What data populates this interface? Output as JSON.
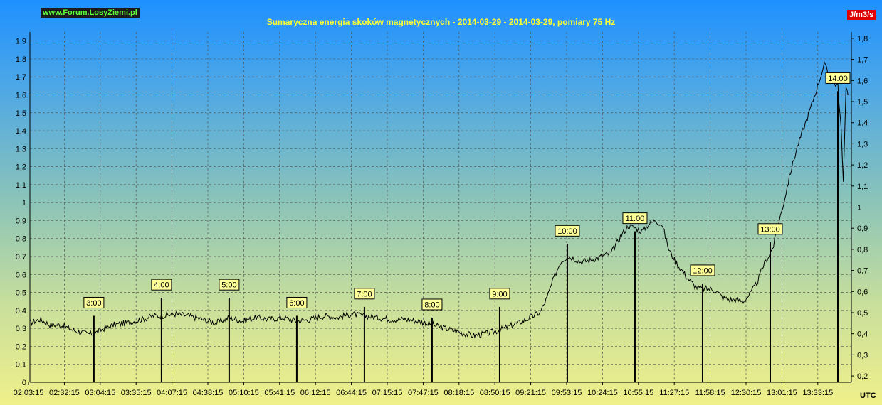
{
  "header": {
    "site_badge": "www.Forum.LosyZiemi.pl",
    "title": "Sumaryczna energia skoków magnetycznych - 2014-03-29 - 2014-03-29, pomiary 75 Hz",
    "unit": "J/m3/s",
    "time_zone": "UTC"
  },
  "colors": {
    "line": "#000000",
    "marker_fill": "#ffff99",
    "badge_text": "#5cff3a",
    "title_text": "#ffff33",
    "unit_bg": "#e00000"
  },
  "chart_data": {
    "type": "line",
    "title": "Sumaryczna energia skoków magnetycznych - 2014-03-29 - 2014-03-29, pomiary 75 Hz",
    "ylabel": "J/m3/s",
    "xlabel": "UTC",
    "grid": true,
    "left_axis": {
      "ylim": [
        0,
        1.95
      ],
      "ticks": [
        "0",
        "0,1",
        "0,2",
        "0,3",
        "0,4",
        "0,5",
        "0,6",
        "0,7",
        "0,8",
        "0,9",
        "1",
        "1,1",
        "1,2",
        "1,3",
        "1,4",
        "1,5",
        "1,6",
        "1,7",
        "1,8",
        "1,9"
      ]
    },
    "right_axis": {
      "ylim": [
        0.17,
        1.83
      ],
      "ticks": [
        "0,2",
        "0,3",
        "0,4",
        "0,5",
        "0,6",
        "0,7",
        "0,8",
        "0,9",
        "1",
        "1,1",
        "1,2",
        "1,3",
        "1,4",
        "1,5",
        "1,6",
        "1,7",
        "1,8"
      ]
    },
    "x_tick_labels": [
      "02:03:15",
      "02:32:15",
      "03:04:15",
      "03:35:15",
      "04:07:15",
      "04:38:15",
      "05:10:15",
      "05:41:15",
      "06:12:15",
      "06:44:15",
      "07:15:15",
      "07:47:15",
      "08:18:15",
      "08:50:15",
      "09:21:15",
      "09:53:15",
      "10:24:15",
      "10:55:15",
      "11:27:15",
      "11:58:15",
      "12:30:15",
      "13:01:15",
      "13:33:15"
    ],
    "xlim_hours": [
      2.054,
      14.2
    ],
    "hour_markers": [
      {
        "label": "3:00",
        "hour": 3,
        "value": 0.37
      },
      {
        "label": "4:00",
        "hour": 4,
        "value": 0.47
      },
      {
        "label": "5:00",
        "hour": 5,
        "value": 0.47
      },
      {
        "label": "6:00",
        "hour": 6,
        "value": 0.37
      },
      {
        "label": "7:00",
        "hour": 7,
        "value": 0.42
      },
      {
        "label": "8:00",
        "hour": 8,
        "value": 0.36
      },
      {
        "label": "9:00",
        "hour": 9,
        "value": 0.42
      },
      {
        "label": "10:00",
        "hour": 10,
        "value": 0.77
      },
      {
        "label": "11:00",
        "hour": 11,
        "value": 0.84
      },
      {
        "label": "12:00",
        "hour": 12,
        "value": 0.55
      },
      {
        "label": "13:00",
        "hour": 13,
        "value": 0.78
      },
      {
        "label": "14:00",
        "hour": 14,
        "value": 1.62
      }
    ],
    "series": [
      {
        "points": [
          [
            2.05,
            0.33
          ],
          [
            2.2,
            0.35
          ],
          [
            2.35,
            0.32
          ],
          [
            2.5,
            0.32
          ],
          [
            2.7,
            0.29
          ],
          [
            2.9,
            0.27
          ],
          [
            3.0,
            0.27
          ],
          [
            3.15,
            0.3
          ],
          [
            3.3,
            0.32
          ],
          [
            3.5,
            0.33
          ],
          [
            3.7,
            0.35
          ],
          [
            3.9,
            0.37
          ],
          [
            4.0,
            0.37
          ],
          [
            4.2,
            0.38
          ],
          [
            4.4,
            0.37
          ],
          [
            4.6,
            0.35
          ],
          [
            4.8,
            0.33
          ],
          [
            5.0,
            0.36
          ],
          [
            5.2,
            0.34
          ],
          [
            5.4,
            0.36
          ],
          [
            5.6,
            0.35
          ],
          [
            5.8,
            0.36
          ],
          [
            6.0,
            0.34
          ],
          [
            6.2,
            0.35
          ],
          [
            6.4,
            0.37
          ],
          [
            6.6,
            0.36
          ],
          [
            6.8,
            0.38
          ],
          [
            7.0,
            0.37
          ],
          [
            7.2,
            0.36
          ],
          [
            7.4,
            0.35
          ],
          [
            7.6,
            0.35
          ],
          [
            7.8,
            0.34
          ],
          [
            8.0,
            0.32
          ],
          [
            8.2,
            0.3
          ],
          [
            8.4,
            0.28
          ],
          [
            8.6,
            0.26
          ],
          [
            8.8,
            0.27
          ],
          [
            9.0,
            0.29
          ],
          [
            9.2,
            0.32
          ],
          [
            9.4,
            0.35
          ],
          [
            9.6,
            0.39
          ],
          [
            9.7,
            0.47
          ],
          [
            9.8,
            0.58
          ],
          [
            9.9,
            0.67
          ],
          [
            10.0,
            0.7
          ],
          [
            10.1,
            0.69
          ],
          [
            10.2,
            0.67
          ],
          [
            10.35,
            0.68
          ],
          [
            10.5,
            0.7
          ],
          [
            10.65,
            0.72
          ],
          [
            10.8,
            0.82
          ],
          [
            10.9,
            0.87
          ],
          [
            11.0,
            0.86
          ],
          [
            11.1,
            0.84
          ],
          [
            11.2,
            0.88
          ],
          [
            11.3,
            0.9
          ],
          [
            11.4,
            0.88
          ],
          [
            11.5,
            0.74
          ],
          [
            11.6,
            0.67
          ],
          [
            11.7,
            0.62
          ],
          [
            11.8,
            0.57
          ],
          [
            11.9,
            0.53
          ],
          [
            12.0,
            0.52
          ],
          [
            12.1,
            0.52
          ],
          [
            12.2,
            0.51
          ],
          [
            12.3,
            0.47
          ],
          [
            12.4,
            0.46
          ],
          [
            12.5,
            0.46
          ],
          [
            12.6,
            0.45
          ],
          [
            12.7,
            0.49
          ],
          [
            12.8,
            0.55
          ],
          [
            12.9,
            0.65
          ],
          [
            13.0,
            0.72
          ],
          [
            13.05,
            0.76
          ],
          [
            13.1,
            0.85
          ],
          [
            13.2,
            1.0
          ],
          [
            13.3,
            1.17
          ],
          [
            13.4,
            1.31
          ],
          [
            13.5,
            1.42
          ],
          [
            13.6,
            1.53
          ],
          [
            13.7,
            1.65
          ],
          [
            13.8,
            1.77
          ],
          [
            13.9,
            1.68
          ],
          [
            14.0,
            1.65
          ],
          [
            14.05,
            1.4
          ],
          [
            14.08,
            1.1
          ],
          [
            14.12,
            1.65
          ],
          [
            14.15,
            1.6
          ]
        ]
      }
    ]
  }
}
